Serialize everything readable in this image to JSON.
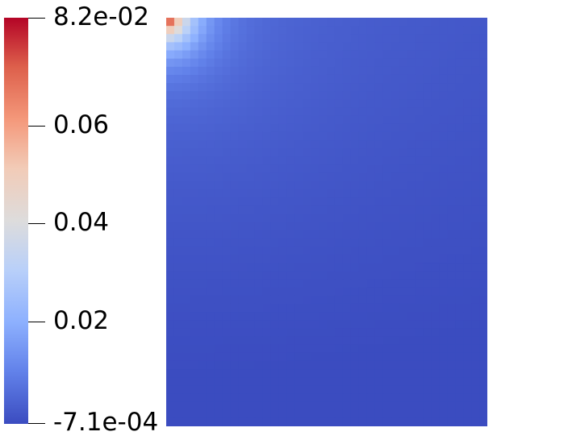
{
  "colorbar": {
    "colors": [
      "#b40426",
      "#dd5f4b",
      "#f4987a",
      "#f2cbb7",
      "#dddcdc",
      "#b9d0f9",
      "#8db0fe",
      "#6282ea",
      "#3b4cc0"
    ],
    "max_label": "8.2e-02",
    "min_label": "-7.1e-04",
    "tick_labels": [
      "0.06",
      "0.04",
      "0.02"
    ],
    "min_value": -0.00071,
    "max_value": 0.082
  },
  "field_plot": {
    "colormap": "coolwarm",
    "hotspot": "top-left"
  }
}
